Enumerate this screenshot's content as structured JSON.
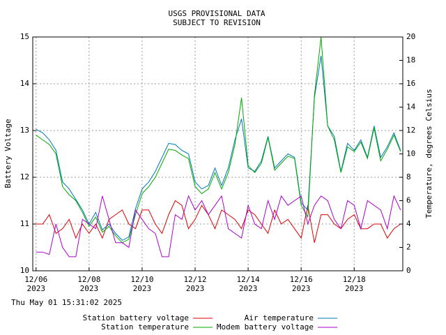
{
  "chart_data": {
    "type": "line",
    "title": [
      "USGS PROVISIONAL DATA",
      "SUBJECT TO REVISION"
    ],
    "ylabel": "Battery Voltage",
    "y2label": "Temperature, degrees Celsius",
    "timestamp": "Thu May 01 15:31:02 2025",
    "grid": true,
    "x": [
      "2023-12-06T00:00",
      "2023-12-06T06:00",
      "2023-12-06T12:00",
      "2023-12-06T18:00",
      "2023-12-07T00:00",
      "2023-12-07T06:00",
      "2023-12-07T12:00",
      "2023-12-07T18:00",
      "2023-12-08T00:00",
      "2023-12-08T06:00",
      "2023-12-08T12:00",
      "2023-12-08T18:00",
      "2023-12-09T00:00",
      "2023-12-09T06:00",
      "2023-12-09T12:00",
      "2023-12-09T18:00",
      "2023-12-10T00:00",
      "2023-12-10T06:00",
      "2023-12-10T12:00",
      "2023-12-10T18:00",
      "2023-12-11T00:00",
      "2023-12-11T06:00",
      "2023-12-11T12:00",
      "2023-12-11T18:00",
      "2023-12-12T00:00",
      "2023-12-12T06:00",
      "2023-12-12T12:00",
      "2023-12-12T18:00",
      "2023-12-13T00:00",
      "2023-12-13T06:00",
      "2023-12-13T12:00",
      "2023-12-13T18:00",
      "2023-12-14T00:00",
      "2023-12-14T06:00",
      "2023-12-14T12:00",
      "2023-12-14T18:00",
      "2023-12-15T00:00",
      "2023-12-15T06:00",
      "2023-12-15T12:00",
      "2023-12-15T18:00",
      "2023-12-16T00:00",
      "2023-12-16T06:00",
      "2023-12-16T12:00",
      "2023-12-16T18:00",
      "2023-12-17T00:00",
      "2023-12-17T06:00",
      "2023-12-17T12:00",
      "2023-12-17T18:00",
      "2023-12-18T00:00",
      "2023-12-18T06:00",
      "2023-12-18T12:00",
      "2023-12-18T18:00",
      "2023-12-19T00:00",
      "2023-12-19T06:00",
      "2023-12-19T12:00",
      "2023-12-19T18:00"
    ],
    "xlim": [
      "2023-12-05T21:00",
      "2023-12-19T20:00"
    ],
    "xticks": [
      {
        "value": "2023-12-06T00:00",
        "label": "12/06\n2023"
      },
      {
        "value": "2023-12-08T00:00",
        "label": "12/08\n2023"
      },
      {
        "value": "2023-12-10T00:00",
        "label": "12/10\n2023"
      },
      {
        "value": "2023-12-12T00:00",
        "label": "12/12\n2023"
      },
      {
        "value": "2023-12-14T00:00",
        "label": "12/14\n2023"
      },
      {
        "value": "2023-12-16T00:00",
        "label": "12/16\n2023"
      },
      {
        "value": "2023-12-18T00:00",
        "label": "12/18\n2023"
      }
    ],
    "ylim": [
      10,
      15
    ],
    "yticks": [
      10,
      11,
      12,
      13,
      14,
      15
    ],
    "y2lim": [
      0,
      20
    ],
    "y2ticks": [
      0,
      2,
      4,
      6,
      8,
      10,
      12,
      14,
      16,
      18,
      20
    ],
    "series": [
      {
        "name": "Station battery voltage",
        "color": "#dd0000",
        "values": [
          11.0,
          11.0,
          11.2,
          10.8,
          10.9,
          11.1,
          10.7,
          11.0,
          10.8,
          11.0,
          10.7,
          11.1,
          11.2,
          11.3,
          11.0,
          10.9,
          11.3,
          11.3,
          11.0,
          10.8,
          11.2,
          11.5,
          11.4,
          10.9,
          11.1,
          11.4,
          11.2,
          10.9,
          11.3,
          11.2,
          11.1,
          10.9,
          11.3,
          11.2,
          11.0,
          10.8,
          11.3,
          11.0,
          11.1,
          10.9,
          10.7,
          11.4,
          10.6,
          11.2,
          11.2,
          11.0,
          10.9,
          11.1,
          11.2,
          10.9,
          10.9,
          11.0,
          11.0,
          10.7,
          10.9,
          11.0
        ]
      },
      {
        "name": "Air temperature",
        "color": "#0077bb",
        "axis": "y2",
        "values": [
          12.1,
          11.8,
          11.2,
          10.3,
          7.6,
          7.0,
          6.1,
          5.2,
          4.0,
          5.0,
          3.5,
          4.0,
          3.2,
          2.6,
          2.9,
          5.3,
          7.0,
          7.6,
          8.5,
          9.7,
          10.9,
          10.8,
          10.3,
          10.0,
          7.6,
          7.0,
          7.3,
          8.8,
          7.3,
          8.8,
          11.2,
          13.0,
          8.8,
          8.5,
          9.4,
          11.5,
          8.8,
          9.4,
          10.0,
          9.7,
          5.8,
          5.2,
          14.8,
          18.4,
          12.4,
          11.5,
          8.5,
          10.9,
          10.3,
          11.2,
          9.7,
          12.4,
          9.7,
          10.6,
          11.8,
          10.3
        ]
      },
      {
        "name": "Station temperature",
        "color": "#00aa00",
        "axis": "y2",
        "values": [
          11.6,
          11.2,
          10.8,
          10.0,
          7.2,
          6.5,
          6.0,
          5.0,
          3.8,
          4.6,
          3.3,
          3.8,
          3.0,
          2.4,
          2.7,
          4.8,
          6.6,
          7.2,
          8.0,
          9.2,
          10.4,
          10.3,
          9.9,
          9.6,
          7.2,
          6.6,
          7.0,
          8.4,
          7.0,
          8.4,
          10.8,
          14.8,
          9.0,
          8.4,
          9.2,
          11.4,
          8.6,
          9.2,
          9.8,
          9.6,
          5.6,
          4.6,
          15.0,
          20.0,
          12.4,
          11.2,
          8.4,
          10.6,
          10.2,
          11.0,
          9.6,
          12.2,
          9.4,
          10.4,
          11.6,
          10.2
        ]
      },
      {
        "name": "Modem battery voltage",
        "color": "#aa00cc",
        "values": [
          10.4,
          10.4,
          10.35,
          11.0,
          10.5,
          10.3,
          10.3,
          11.1,
          11.0,
          10.9,
          11.6,
          11.1,
          10.6,
          10.6,
          10.5,
          11.3,
          11.1,
          10.9,
          10.8,
          10.3,
          10.3,
          11.2,
          11.1,
          11.6,
          11.3,
          11.5,
          11.2,
          11.4,
          11.6,
          10.9,
          10.8,
          10.7,
          11.4,
          11.0,
          10.9,
          11.5,
          11.1,
          11.6,
          11.4,
          11.5,
          11.6,
          11.0,
          11.4,
          11.6,
          11.5,
          11.1,
          10.9,
          11.5,
          11.4,
          10.9,
          11.5,
          11.4,
          11.3,
          10.9,
          11.6,
          11.3
        ]
      }
    ]
  }
}
